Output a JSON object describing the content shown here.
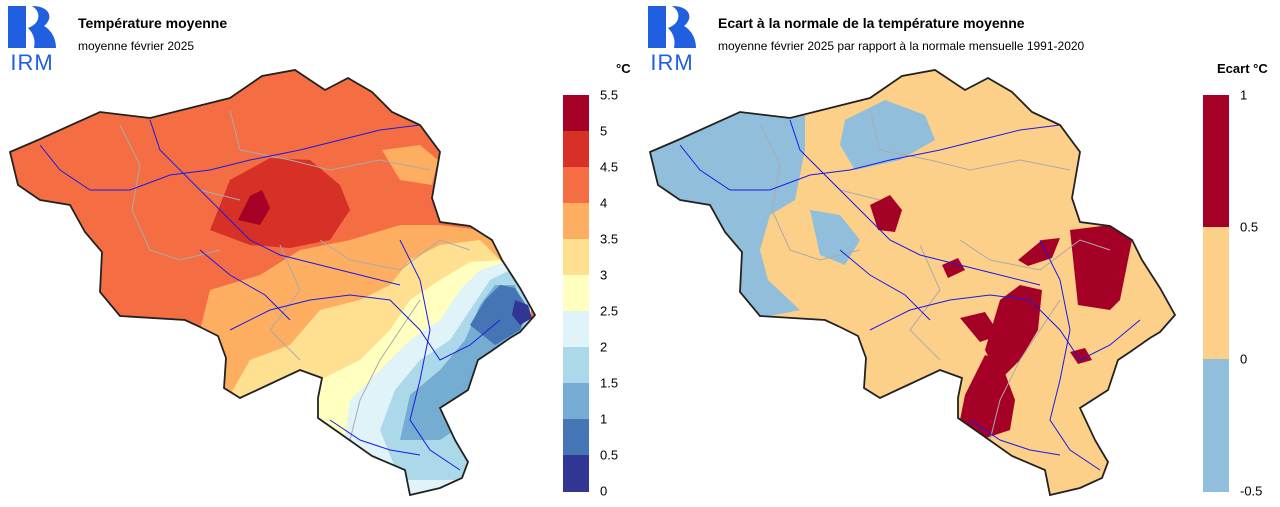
{
  "left": {
    "logo_text": "IRM",
    "title": "Température moyenne",
    "subtitle": "moyenne février 2025",
    "unit": "°C",
    "legend": {
      "labels": [
        "5.5",
        "5",
        "4.5",
        "4",
        "3.5",
        "3",
        "2.5",
        "2",
        "1.5",
        "1",
        "0.5",
        "0"
      ],
      "colors": [
        "#a50026",
        "#d73027",
        "#f46d43",
        "#fdae61",
        "#fee090",
        "#ffffbf",
        "#e0f3f8",
        "#abd9e9",
        "#74add1",
        "#4575b4",
        "#313695"
      ]
    }
  },
  "right": {
    "logo_text": "IRM",
    "title": "Ecart à la normale de la température moyenne",
    "subtitle": "moyenne février 2025 par rapport à la normale mensuelle 1991-2020",
    "unit": "Ecart °C",
    "legend": {
      "labels": [
        "1",
        "0.5",
        "0",
        "-0.5"
      ],
      "colors": [
        "#a50026",
        "#fdd08a",
        "#91bfdb"
      ]
    }
  },
  "colors": {
    "logo_blue": "#1f5fe0",
    "border": "#222222",
    "rivers": "#1a1ae6",
    "admin_lines": "#aaaaaa"
  }
}
